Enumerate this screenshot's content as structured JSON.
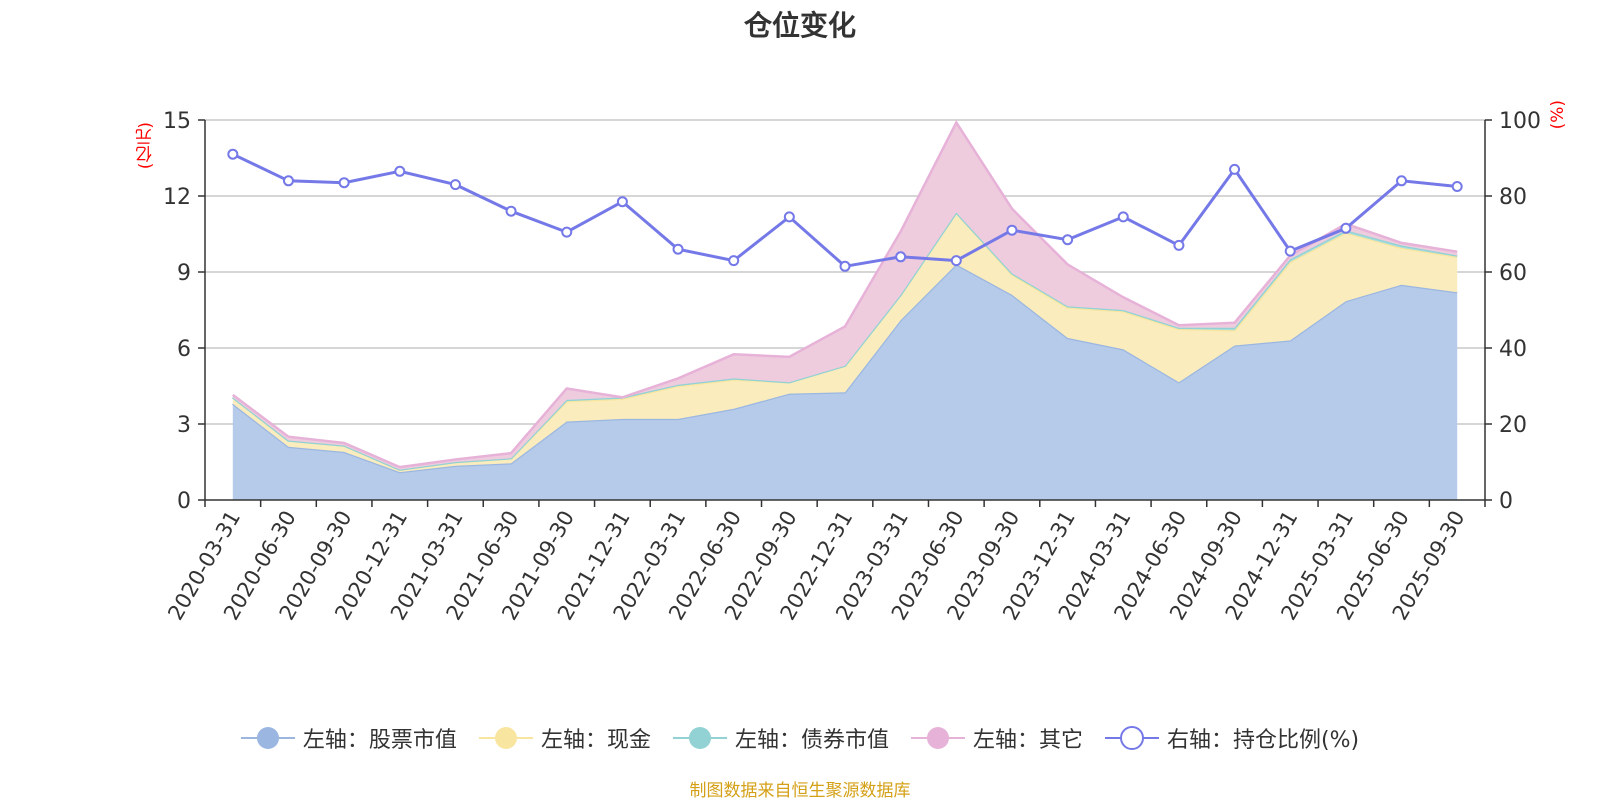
{
  "chart_data": {
    "type": "area",
    "title": "仓位变化",
    "left_unit": "(亿元)",
    "right_unit": "(%)",
    "categories": [
      "2020-03-31",
      "2020-06-30",
      "2020-09-30",
      "2020-12-31",
      "2021-03-31",
      "2021-06-30",
      "2021-09-30",
      "2021-12-31",
      "2022-03-31",
      "2022-06-30",
      "2022-09-30",
      "2022-12-31",
      "2023-03-31",
      "2023-06-30",
      "2023-09-30",
      "2023-12-31",
      "2024-03-31",
      "2024-06-30",
      "2024-09-30",
      "2024-12-31",
      "2025-03-31",
      "2025-06-30",
      "2025-09-30"
    ],
    "left_axis": {
      "min": 0,
      "max": 15,
      "ticks": [
        0,
        3,
        6,
        9,
        12,
        15
      ]
    },
    "right_axis": {
      "min": 0,
      "max": 100,
      "ticks": [
        0,
        20,
        40,
        60,
        80,
        100
      ]
    },
    "stacked_series": [
      {
        "name": "左轴：股票市值",
        "color": "#9bb7e1",
        "fill": "#b6cbea",
        "values": [
          3.8,
          2.1,
          1.9,
          1.1,
          1.35,
          1.45,
          3.1,
          3.2,
          3.2,
          3.6,
          4.2,
          4.25,
          7.1,
          9.3,
          8.1,
          6.4,
          5.95,
          4.65,
          6.1,
          6.3,
          7.85,
          8.5,
          8.2
        ]
      },
      {
        "name": "左轴：现金",
        "color": "#f8e6a0",
        "fill": "#faecbc",
        "values": [
          0.25,
          0.25,
          0.25,
          0.1,
          0.15,
          0.2,
          0.8,
          0.8,
          1.3,
          1.15,
          0.45,
          1.05,
          1.0,
          2.05,
          0.8,
          1.2,
          1.5,
          2.1,
          0.6,
          3.1,
          2.7,
          1.45,
          1.4
        ]
      },
      {
        "name": "左轴：债券市值",
        "color": "#92d2d4",
        "fill": "#a8dcdc",
        "values": [
          0.0,
          0.0,
          0.0,
          0.0,
          0.0,
          0.0,
          0.05,
          0.05,
          0.05,
          0.05,
          0.0,
          0.0,
          0.0,
          0.0,
          0.05,
          0.05,
          0.05,
          0.05,
          0.1,
          0.1,
          0.1,
          0.1,
          0.05
        ]
      },
      {
        "name": "左轴：其它",
        "color": "#e7b2d8",
        "fill": "#eeccde",
        "values": [
          0.1,
          0.15,
          0.1,
          0.1,
          0.1,
          0.2,
          0.45,
          0.0,
          0.25,
          0.95,
          1.0,
          1.55,
          2.5,
          3.55,
          2.55,
          1.65,
          0.5,
          0.1,
          0.2,
          0.15,
          0.25,
          0.1,
          0.15
        ]
      }
    ],
    "line_series": {
      "name": "右轴：持仓比例(%)",
      "color": "#7579e8",
      "values": [
        91,
        84,
        83.5,
        86.5,
        83,
        76,
        70.5,
        78.5,
        66,
        63,
        74.5,
        61.5,
        64,
        63,
        71,
        68.5,
        74.5,
        67,
        87,
        65.5,
        71.5,
        84,
        82.5
      ]
    },
    "source": "制图数据来自恒生聚源数据库"
  }
}
